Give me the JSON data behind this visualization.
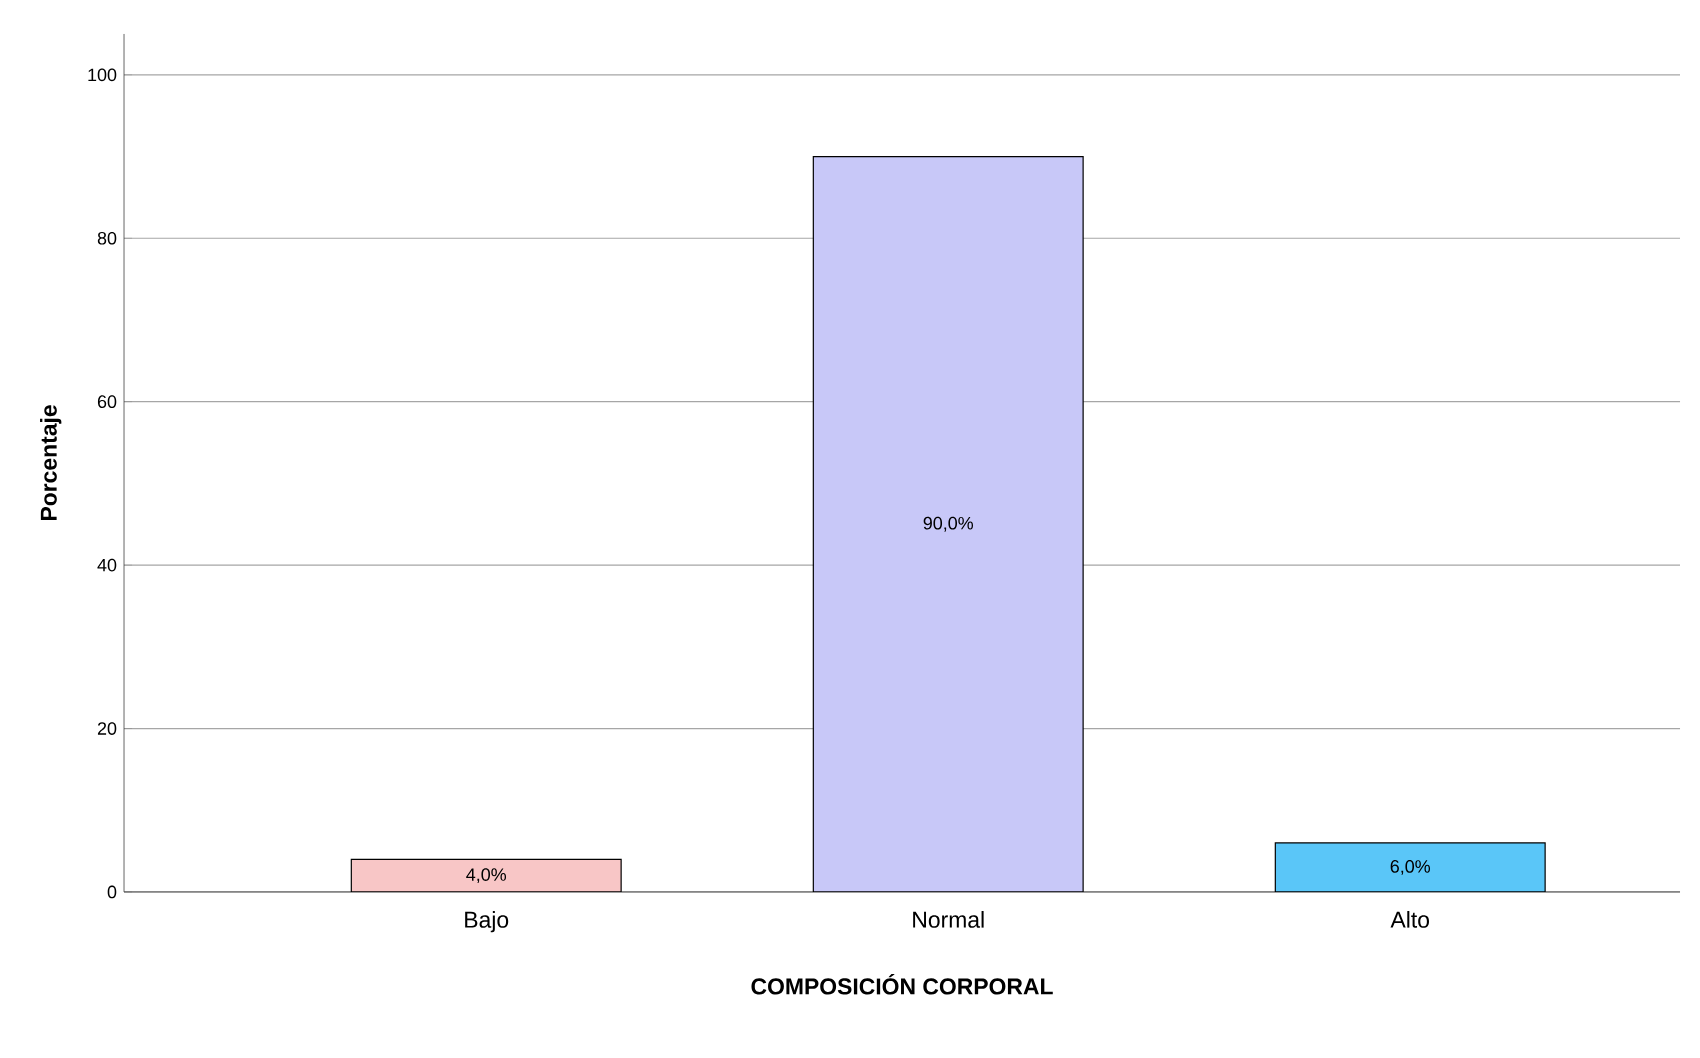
{
  "chart_data": {
    "type": "bar",
    "xlabel": "COMPOSICIÓN CORPORAL",
    "ylabel": "Porcentaje",
    "categories": [
      "Bajo",
      "Normal",
      "Alto"
    ],
    "values": [
      4.0,
      90.0,
      6.0
    ],
    "value_labels": [
      "4,0%",
      "90,0%",
      "6,0%"
    ],
    "colors": [
      "#f8c6c6",
      "#c8c8f8",
      "#5ac6f8"
    ],
    "ylim": [
      0,
      105
    ],
    "yticks": [
      0,
      20,
      40,
      60,
      80,
      100
    ],
    "grid": "y"
  }
}
